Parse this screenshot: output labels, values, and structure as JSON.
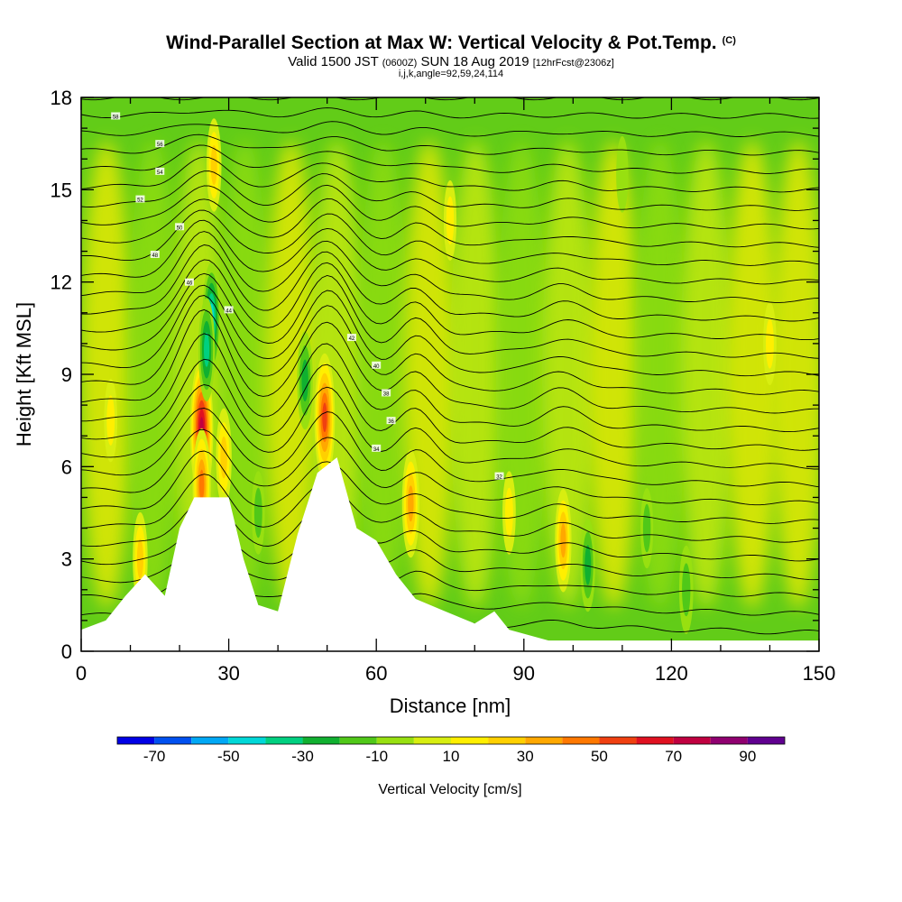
{
  "title": {
    "line1": "Wind-Parallel Section at Max W: Vertical Velocity & Pot.Temp.",
    "line1_mark": "(C)",
    "line2_a": "Valid 1500 JST",
    "line2_b": "(0600Z)",
    "line2_c": "SUN 18 Aug 2019",
    "line2_d": "[12hrFcst@2306z]",
    "line3": "i,j,k,angle=92,59,24,114"
  },
  "chart_data": {
    "type": "heatmap",
    "xlabel": "Distance [nm]",
    "ylabel": "Height [Kft MSL]",
    "xlim": [
      0,
      150
    ],
    "ylim": [
      0,
      18
    ],
    "xticks": [
      0,
      30,
      60,
      90,
      120,
      150
    ],
    "yticks": [
      0,
      3,
      6,
      9,
      12,
      15,
      18
    ],
    "colorbar": {
      "label": "Vertical Velocity [cm/s]",
      "ticks": [
        -70,
        -50,
        -30,
        -10,
        10,
        30,
        50,
        70,
        90
      ],
      "bounds": [
        -80,
        100
      ],
      "colors": [
        "#0000e6",
        "#0050f0",
        "#00a8f5",
        "#00d8d8",
        "#00d080",
        "#10b030",
        "#50c818",
        "#98e010",
        "#d8ee10",
        "#ffef00",
        "#ffd000",
        "#ffa800",
        "#ff7800",
        "#f04010",
        "#e01020",
        "#c00040",
        "#900070",
        "#600090"
      ]
    },
    "terrain": [
      [
        0,
        0.7
      ],
      [
        5,
        1.0
      ],
      [
        9,
        1.8
      ],
      [
        13,
        2.5
      ],
      [
        17,
        1.8
      ],
      [
        20,
        4.0
      ],
      [
        23,
        5.0
      ],
      [
        30,
        5.0
      ],
      [
        33,
        3.0
      ],
      [
        36,
        1.5
      ],
      [
        40,
        1.3
      ],
      [
        44,
        3.8
      ],
      [
        48,
        5.8
      ],
      [
        52,
        6.3
      ],
      [
        56,
        4.0
      ],
      [
        60,
        3.6
      ],
      [
        64,
        2.5
      ],
      [
        68,
        1.7
      ],
      [
        74,
        1.3
      ],
      [
        80,
        0.9
      ],
      [
        84,
        1.3
      ],
      [
        87,
        0.7
      ],
      [
        95,
        0.35
      ],
      [
        150,
        0.35
      ]
    ],
    "velocity_cells": [
      {
        "x": 24.5,
        "y": 7.2,
        "value": 75
      },
      {
        "x": 24.5,
        "y": 5.4,
        "value": 45
      },
      {
        "x": 29,
        "y": 6.3,
        "value": 30
      },
      {
        "x": 27,
        "y": 15.8,
        "value": 25
      },
      {
        "x": 26.5,
        "y": 10.8,
        "value": -45
      },
      {
        "x": 25.5,
        "y": 9.8,
        "value": -35
      },
      {
        "x": 49.5,
        "y": 7.6,
        "value": 60
      },
      {
        "x": 45.5,
        "y": 8.8,
        "value": -30
      },
      {
        "x": 67,
        "y": 4.8,
        "value": 40
      },
      {
        "x": 98,
        "y": 3.6,
        "value": 35
      },
      {
        "x": 103,
        "y": 2.8,
        "value": -25
      },
      {
        "x": 123,
        "y": 2.0,
        "value": -20
      },
      {
        "x": 6,
        "y": 7.5,
        "value": 15
      },
      {
        "x": 12,
        "y": 3.0,
        "value": 25
      },
      {
        "x": 75,
        "y": 14.0,
        "value": 12
      },
      {
        "x": 140,
        "y": 10.0,
        "value": 15
      },
      {
        "x": 110,
        "y": 15.5,
        "value": -8
      },
      {
        "x": 36,
        "y": 4.5,
        "value": -15
      },
      {
        "x": 115,
        "y": 4.0,
        "value": -12
      },
      {
        "x": 87,
        "y": 4.5,
        "value": 15
      }
    ],
    "theta_labels": [
      "58",
      "56",
      "54",
      "52",
      "50",
      "48",
      "46",
      "44",
      "42",
      "40",
      "38",
      "36",
      "34",
      "32"
    ]
  }
}
